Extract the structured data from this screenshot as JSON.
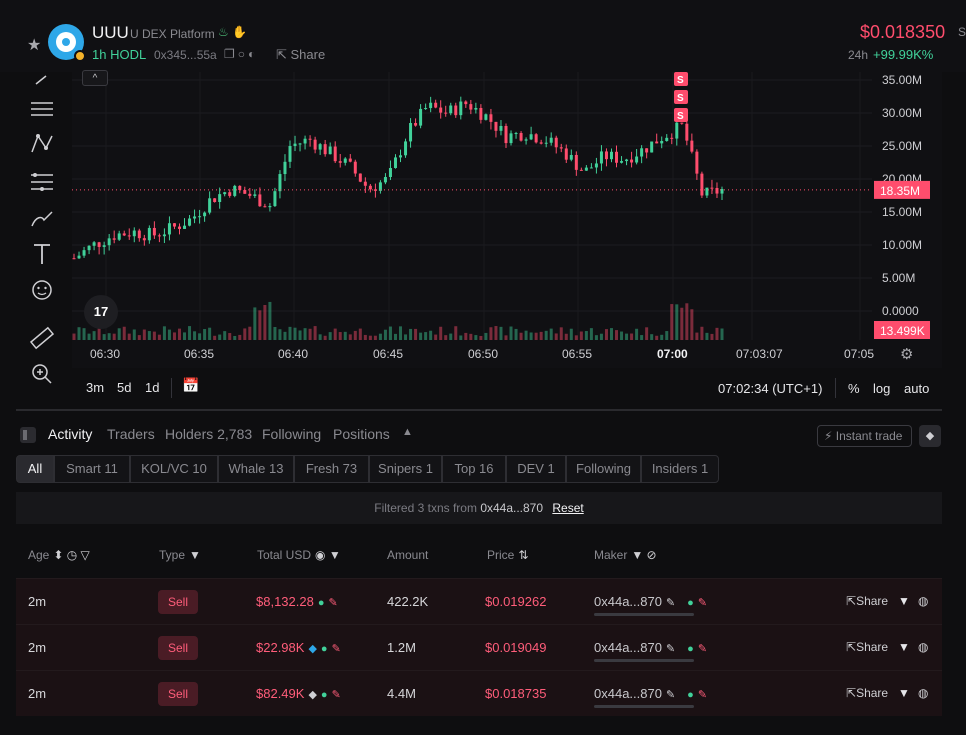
{
  "header": {
    "symbol": "UUU",
    "platform": "U DEX Platform",
    "age": "1h",
    "tag": "HODL",
    "address": "0x345...55a",
    "share_label": "Share",
    "price": "$0.018350",
    "change_label": "24h",
    "change": "+99.99K%",
    "cut_label": "S"
  },
  "chart": {
    "collapse_label": "^",
    "tv_logo": "17",
    "y_ticks": [
      "35.00M",
      "30.00M",
      "25.00M",
      "20.00M",
      "15.00M",
      "10.00M",
      "5.00M",
      "0.0000"
    ],
    "current_marker": "18.35M",
    "volume_marker": "13.499K",
    "x_ticks": [
      "06:30",
      "06:35",
      "06:40",
      "06:45",
      "06:50",
      "06:55",
      "07:00",
      "07:03:07",
      "07:05"
    ],
    "trade_marker": "S"
  },
  "chart_data": {
    "type": "line",
    "x": [
      "06:29",
      "06:30",
      "06:31",
      "06:32",
      "06:33",
      "06:34",
      "06:35",
      "06:36",
      "06:37",
      "06:38",
      "06:39",
      "06:40",
      "06:41",
      "06:42",
      "06:43",
      "06:44",
      "06:45",
      "06:46",
      "06:47",
      "06:48",
      "06:49",
      "06:50",
      "06:51",
      "06:52",
      "06:53",
      "06:54",
      "06:55",
      "06:56",
      "06:57",
      "06:58",
      "06:59",
      "07:00",
      "07:01",
      "07:02"
    ],
    "values": [
      8.0,
      10.0,
      11.5,
      12.0,
      11.5,
      12.5,
      14.0,
      17.0,
      18.5,
      17.5,
      16.0,
      25.0,
      26.0,
      24.0,
      22.0,
      18.5,
      20.0,
      27.0,
      31.0,
      30.0,
      31.5,
      29.5,
      26.5,
      27.0,
      26.0,
      24.0,
      21.0,
      23.5,
      23.0,
      24.5,
      26.5,
      28.0,
      17.5,
      18.35
    ],
    "ylim": [
      0,
      35
    ],
    "xlabel": "",
    "ylabel": ""
  },
  "footer": {
    "timeframes": [
      "3m",
      "5d",
      "1d"
    ],
    "time": "07:02:34 (UTC+1)",
    "percent": "%",
    "log": "log",
    "auto": "auto"
  },
  "tabs": {
    "items": [
      "Activity",
      "Traders",
      "Holders 2,783",
      "Following",
      "Positions"
    ],
    "instant": "Instant trade"
  },
  "pills": [
    "All",
    "Smart 11",
    "KOL/VC 10",
    "Whale 13",
    "Fresh 73",
    "Snipers 1",
    "Top 16",
    "DEV 1",
    "Following",
    "Insiders 1"
  ],
  "banner": {
    "prefix": "Filtered 3 txns from",
    "maker": "0x44a...870",
    "reset": "Reset"
  },
  "table": {
    "headers": {
      "age": "Age",
      "type": "Type",
      "total": "Total USD",
      "amount": "Amount",
      "price": "Price",
      "maker": "Maker"
    },
    "rows": [
      {
        "age": "2m",
        "type": "Sell",
        "total": "$8,132.28",
        "amount": "422.2K",
        "price": "$0.019262",
        "maker": "0x44a...870",
        "share": "Share"
      },
      {
        "age": "2m",
        "type": "Sell",
        "total": "$22.98K",
        "amount": "1.2M",
        "price": "$0.019049",
        "maker": "0x44a...870",
        "share": "Share"
      },
      {
        "age": "2m",
        "type": "Sell",
        "total": "$82.49K",
        "amount": "4.4M",
        "price": "$0.018735",
        "maker": "0x44a...870",
        "share": "Share"
      }
    ]
  },
  "colors": {
    "up": "#41d19a",
    "down": "#ff4d6d",
    "accent": "#2ea7e8"
  }
}
